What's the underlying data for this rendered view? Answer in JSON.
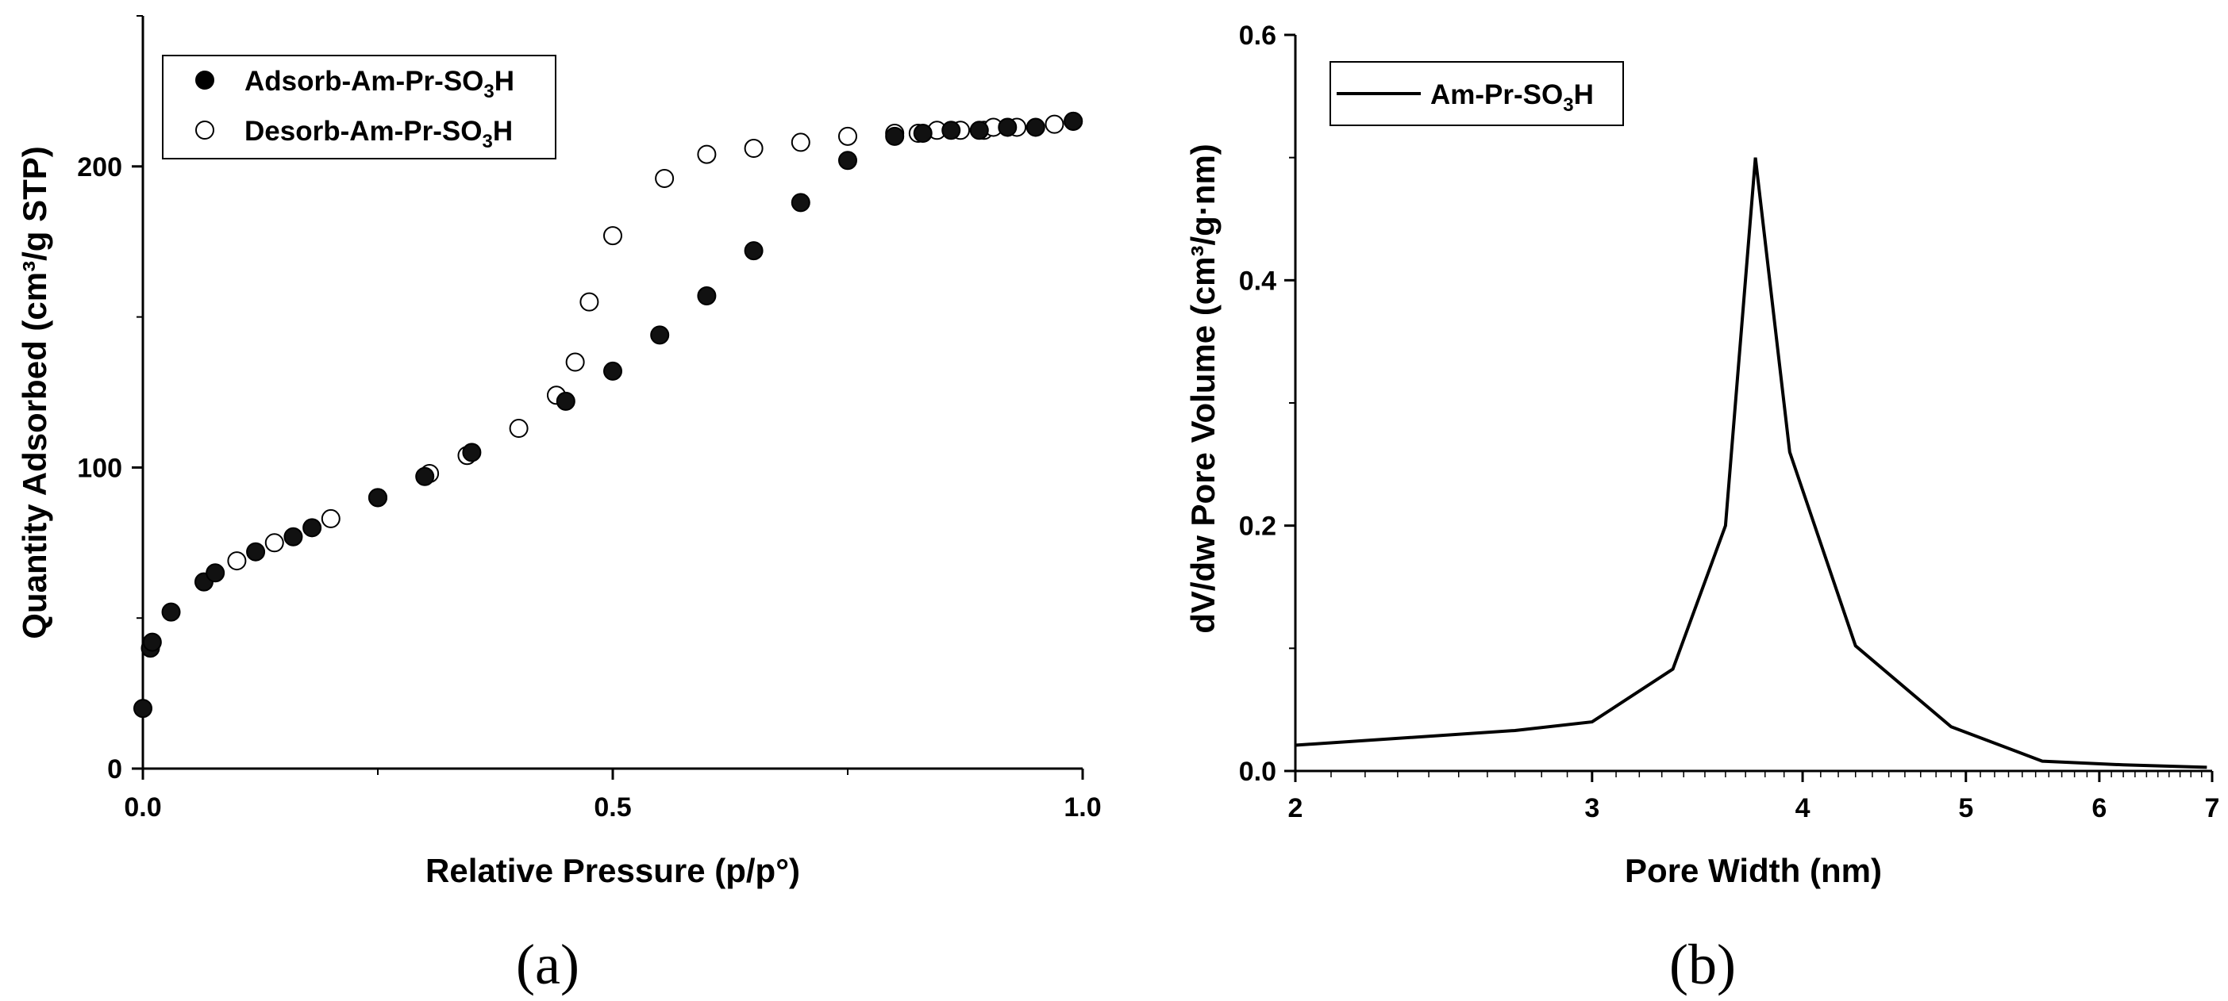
{
  "chart_data": [
    {
      "type": "scatter",
      "panel_label": "(a)",
      "title": "",
      "xlabel": "Relative Pressure (p/p°)",
      "ylabel": "Quantity Adsorbed (cm³/g STP)",
      "xlim": [
        0,
        1
      ],
      "ylim": [
        0,
        250
      ],
      "xticks": [
        {
          "value": 0,
          "label": "0.0"
        },
        {
          "value": 0.5,
          "label": "0.5"
        },
        {
          "value": 1,
          "label": "1.0"
        }
      ],
      "yticks": [
        {
          "value": 0,
          "label": "0"
        },
        {
          "value": 100,
          "label": "100"
        },
        {
          "value": 200,
          "label": "200"
        }
      ],
      "legend_position": "top-left",
      "series": [
        {
          "name": "Adsorb-Am-Pr-SO3H",
          "legend_main": "Adsorb-Am-Pr-SO",
          "legend_sub": "3",
          "legend_tail": "H",
          "marker": "filled-circle",
          "x": [
            0.0,
            0.008,
            0.01,
            0.03,
            0.065,
            0.077,
            0.12,
            0.16,
            0.18,
            0.25,
            0.3,
            0.35,
            0.45,
            0.5,
            0.55,
            0.6,
            0.65,
            0.7,
            0.75,
            0.8,
            0.83,
            0.86,
            0.89,
            0.92,
            0.95,
            0.99
          ],
          "y": [
            20,
            40,
            42,
            52,
            62,
            65,
            72,
            77,
            80,
            90,
            97,
            105,
            122,
            132,
            144,
            157,
            172,
            188,
            202,
            210,
            211,
            212,
            212,
            213,
            213,
            215
          ]
        },
        {
          "name": "Desorb-Am-Pr-SO3H",
          "legend_main": "Desorb-Am-Pr-SO",
          "legend_sub": "3",
          "legend_tail": "H",
          "marker": "open-circle",
          "x": [
            0.1,
            0.14,
            0.2,
            0.25,
            0.305,
            0.345,
            0.4,
            0.44,
            0.46,
            0.475,
            0.5,
            0.555,
            0.6,
            0.65,
            0.7,
            0.75,
            0.8,
            0.825,
            0.845,
            0.87,
            0.895,
            0.905,
            0.93,
            0.97,
            0.99
          ],
          "y": [
            69,
            75,
            83,
            90,
            98,
            104,
            113,
            124,
            135,
            155,
            177,
            196,
            204,
            206,
            208,
            210,
            211,
            211,
            212,
            212,
            212,
            213,
            213,
            214,
            215
          ]
        }
      ]
    },
    {
      "type": "line",
      "panel_label": "(b)",
      "title": "",
      "xlabel": "Pore Width (nm)",
      "ylabel": "dV/dw Pore Volume (cm³/g·nm)",
      "xscale": "log",
      "xlim": [
        2,
        7
      ],
      "ylim": [
        0,
        0.6
      ],
      "xticks": [
        {
          "value": 2,
          "label": "2"
        },
        {
          "value": 3,
          "label": "3"
        },
        {
          "value": 4,
          "label": "4"
        },
        {
          "value": 5,
          "label": "5"
        },
        {
          "value": 6,
          "label": "6"
        },
        {
          "value": 7,
          "label": "7"
        }
      ],
      "yticks": [
        {
          "value": 0,
          "label": "0.0"
        },
        {
          "value": 0.2,
          "label": "0.2"
        },
        {
          "value": 0.4,
          "label": "0.4"
        },
        {
          "value": 0.6,
          "label": "0.6"
        }
      ],
      "legend_position": "top-left",
      "series": [
        {
          "name": "Am-Pr-SO3H",
          "legend_main": "Am-Pr-SO",
          "legend_sub": "3",
          "legend_tail": "H",
          "x": [
            2.0,
            2.7,
            3.0,
            3.35,
            3.6,
            3.75,
            3.93,
            4.3,
            4.9,
            5.55,
            6.2,
            6.95
          ],
          "y": [
            0.021,
            0.033,
            0.04,
            0.083,
            0.2,
            0.5,
            0.26,
            0.102,
            0.036,
            0.008,
            0.005,
            0.003
          ]
        }
      ]
    }
  ]
}
